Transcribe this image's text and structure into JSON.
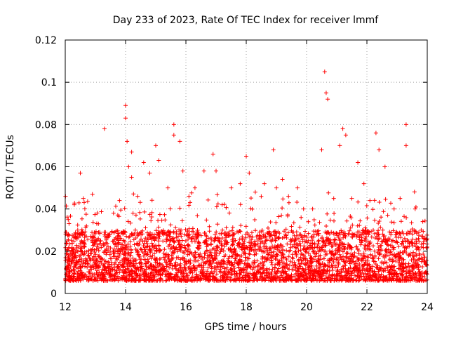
{
  "chart_data": {
    "type": "scatter",
    "title": "Day 233 of 2023, Rate Of TEC Index for receiver lmmf",
    "xlabel": "GPS time / hours",
    "ylabel": "ROTI / TECUs",
    "xlim": [
      12,
      24
    ],
    "ylim": [
      0,
      0.12
    ],
    "xticks": [
      12,
      14,
      16,
      18,
      20,
      22,
      24
    ],
    "yticks": [
      0,
      0.02,
      0.04,
      0.06,
      0.08,
      0.1,
      0.12
    ],
    "xtick_labels": [
      "12",
      "14",
      "16",
      "18",
      "20",
      "22",
      "24"
    ],
    "ytick_labels": [
      "0",
      "0.02",
      "0.04",
      "0.06",
      "0.08",
      "0.1",
      "0.12"
    ],
    "grid": true,
    "marker": "+",
    "color": "#ff0000",
    "series": [
      {
        "name": "ROTI",
        "x": [
          12.1,
          12.3,
          12.5,
          12.6,
          12.9,
          13.1,
          13.3,
          13.6,
          13.8,
          14.0,
          14.0,
          14.05,
          14.1,
          14.2,
          14.2,
          14.4,
          14.6,
          14.8,
          15.0,
          15.1,
          15.4,
          15.6,
          15.6,
          15.8,
          15.9,
          16.1,
          16.3,
          16.6,
          16.9,
          17.0,
          17.2,
          17.5,
          17.8,
          18.0,
          18.1,
          18.3,
          18.6,
          18.9,
          19.0,
          19.2,
          19.4,
          19.7,
          19.9,
          20.2,
          20.5,
          20.6,
          20.65,
          20.7,
          20.9,
          21.1,
          21.2,
          21.3,
          21.5,
          21.7,
          21.9,
          22.1,
          22.3,
          22.4,
          22.6,
          22.9,
          23.1,
          23.3,
          23.3,
          23.6,
          23.8,
          24.0
        ],
        "y": [
          0.035,
          0.042,
          0.057,
          0.045,
          0.047,
          0.033,
          0.078,
          0.038,
          0.044,
          0.089,
          0.083,
          0.072,
          0.06,
          0.067,
          0.055,
          0.046,
          0.062,
          0.057,
          0.07,
          0.063,
          0.05,
          0.08,
          0.075,
          0.072,
          0.058,
          0.046,
          0.05,
          0.058,
          0.066,
          0.058,
          0.042,
          0.05,
          0.052,
          0.065,
          0.057,
          0.048,
          0.052,
          0.068,
          0.05,
          0.054,
          0.046,
          0.05,
          0.04,
          0.04,
          0.068,
          0.105,
          0.095,
          0.092,
          0.045,
          0.07,
          0.078,
          0.075,
          0.045,
          0.062,
          0.052,
          0.044,
          0.076,
          0.068,
          0.06,
          0.04,
          0.045,
          0.08,
          0.07,
          0.04,
          0.03,
          0.022
        ]
      }
    ],
    "background_band": {
      "description_of_bulk": "dense cloud of points spanning the whole time range",
      "typical_low": 0.006,
      "typical_high": 0.03
    }
  }
}
